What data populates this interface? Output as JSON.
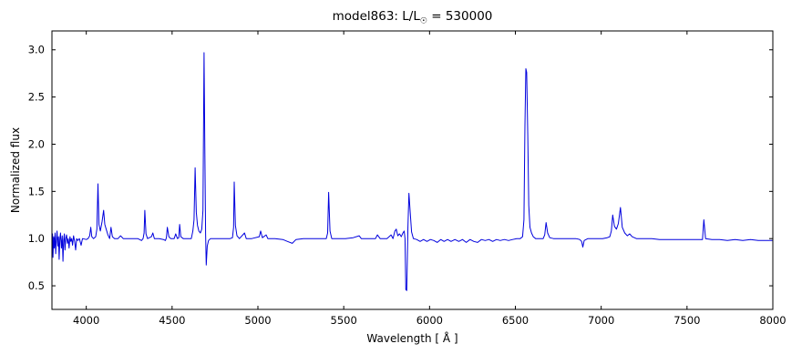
{
  "title": {
    "prefix": "model863: L/L",
    "sun": "☉",
    "suffix": " = 530000"
  },
  "chart_data": {
    "type": "line",
    "title": "model863: L/L☉ = 530000",
    "xlabel": "Wavelength [ Å ]",
    "ylabel": "Normalized flux",
    "xlim": [
      3800,
      8000
    ],
    "ylim": [
      0.25,
      3.2
    ],
    "xticks": [
      4000,
      4500,
      5000,
      5500,
      6000,
      6500,
      7000,
      7500,
      8000
    ],
    "yticks": [
      0.5,
      1.0,
      1.5,
      2.0,
      2.5,
      3.0
    ],
    "grid": false,
    "legend": null,
    "line_color": "#0000dd",
    "axis_color": "#000000",
    "background": "#ffffff",
    "points": [
      [
        3800,
        0.97
      ],
      [
        3803,
        1.05
      ],
      [
        3806,
        0.8
      ],
      [
        3810,
        1.02
      ],
      [
        3814,
        0.9
      ],
      [
        3818,
        1.06
      ],
      [
        3822,
        0.84
      ],
      [
        3826,
        1.0
      ],
      [
        3830,
        1.08
      ],
      [
        3834,
        0.92
      ],
      [
        3838,
        1.02
      ],
      [
        3842,
        0.78
      ],
      [
        3846,
        1.0
      ],
      [
        3850,
        1.06
      ],
      [
        3855,
        0.9
      ],
      [
        3860,
        1.03
      ],
      [
        3864,
        0.76
      ],
      [
        3868,
        0.98
      ],
      [
        3872,
        1.05
      ],
      [
        3876,
        0.88
      ],
      [
        3880,
        1.0
      ],
      [
        3885,
        1.04
      ],
      [
        3890,
        0.95
      ],
      [
        3895,
        1.0
      ],
      [
        3900,
        0.9
      ],
      [
        3905,
        1.02
      ],
      [
        3910,
        0.97
      ],
      [
        3915,
        1.0
      ],
      [
        3920,
        0.93
      ],
      [
        3926,
        1.03
      ],
      [
        3932,
        0.97
      ],
      [
        3938,
        0.88
      ],
      [
        3944,
        1.0
      ],
      [
        3950,
        0.98
      ],
      [
        3960,
        1.0
      ],
      [
        3970,
        0.93
      ],
      [
        3978,
        1.0
      ],
      [
        4000,
        0.99
      ],
      [
        4010,
        1.0
      ],
      [
        4020,
        1.03
      ],
      [
        4026,
        1.12
      ],
      [
        4032,
        1.02
      ],
      [
        4042,
        1.0
      ],
      [
        4055,
        1.02
      ],
      [
        4062,
        1.1
      ],
      [
        4068,
        1.58
      ],
      [
        4074,
        1.15
      ],
      [
        4082,
        1.08
      ],
      [
        4092,
        1.18
      ],
      [
        4101,
        1.3
      ],
      [
        4108,
        1.15
      ],
      [
        4116,
        1.1
      ],
      [
        4126,
        1.04
      ],
      [
        4136,
        1.0
      ],
      [
        4144,
        1.12
      ],
      [
        4152,
        1.02
      ],
      [
        4165,
        1.0
      ],
      [
        4185,
        1.0
      ],
      [
        4200,
        1.03
      ],
      [
        4215,
        1.0
      ],
      [
        4255,
        1.0
      ],
      [
        4300,
        1.0
      ],
      [
        4322,
        0.98
      ],
      [
        4331,
        1.0
      ],
      [
        4337,
        1.06
      ],
      [
        4341,
        1.3
      ],
      [
        4348,
        1.05
      ],
      [
        4357,
        1.0
      ],
      [
        4380,
        1.02
      ],
      [
        4388,
        1.06
      ],
      [
        4397,
        1.0
      ],
      [
        4425,
        1.0
      ],
      [
        4450,
        0.99
      ],
      [
        4461,
        0.98
      ],
      [
        4467,
        1.01
      ],
      [
        4472,
        1.12
      ],
      [
        4481,
        1.02
      ],
      [
        4492,
        1.0
      ],
      [
        4512,
        1.0
      ],
      [
        4521,
        1.05
      ],
      [
        4531,
        1.0
      ],
      [
        4539,
        1.01
      ],
      [
        4544,
        1.15
      ],
      [
        4551,
        1.02
      ],
      [
        4565,
        1.0
      ],
      [
        4590,
        1.0
      ],
      [
        4612,
        1.0
      ],
      [
        4621,
        1.08
      ],
      [
        4628,
        1.2
      ],
      [
        4634,
        1.75
      ],
      [
        4641,
        1.28
      ],
      [
        4648,
        1.14
      ],
      [
        4656,
        1.08
      ],
      [
        4665,
        1.06
      ],
      [
        4673,
        1.1
      ],
      [
        4680,
        1.3
      ],
      [
        4686,
        2.97
      ],
      [
        4691,
        1.9
      ],
      [
        4695,
        1.05
      ],
      [
        4699,
        0.72
      ],
      [
        4705,
        0.92
      ],
      [
        4712,
        0.98
      ],
      [
        4724,
        1.0
      ],
      [
        4760,
        1.0
      ],
      [
        4800,
        1.0
      ],
      [
        4838,
        1.0
      ],
      [
        4852,
        1.01
      ],
      [
        4858,
        1.12
      ],
      [
        4862,
        1.6
      ],
      [
        4869,
        1.14
      ],
      [
        4878,
        1.03
      ],
      [
        4892,
        1.0
      ],
      [
        4922,
        1.06
      ],
      [
        4932,
        1.0
      ],
      [
        4964,
        1.0
      ],
      [
        5008,
        1.02
      ],
      [
        5016,
        1.08
      ],
      [
        5026,
        1.01
      ],
      [
        5048,
        1.04
      ],
      [
        5058,
        1.0
      ],
      [
        5100,
        1.0
      ],
      [
        5145,
        0.99
      ],
      [
        5172,
        0.97
      ],
      [
        5200,
        0.95
      ],
      [
        5222,
        0.99
      ],
      [
        5265,
        1.0
      ],
      [
        5310,
        1.0
      ],
      [
        5360,
        1.0
      ],
      [
        5398,
        1.0
      ],
      [
        5406,
        1.06
      ],
      [
        5412,
        1.49
      ],
      [
        5420,
        1.08
      ],
      [
        5430,
        1.0
      ],
      [
        5465,
        1.0
      ],
      [
        5510,
        1.0
      ],
      [
        5555,
        1.01
      ],
      [
        5590,
        1.03
      ],
      [
        5602,
        1.0
      ],
      [
        5645,
        1.0
      ],
      [
        5685,
        1.0
      ],
      [
        5696,
        1.04
      ],
      [
        5712,
        1.0
      ],
      [
        5752,
        1.0
      ],
      [
        5776,
        1.04
      ],
      [
        5787,
        1.0
      ],
      [
        5798,
        1.08
      ],
      [
        5806,
        1.1
      ],
      [
        5815,
        1.03
      ],
      [
        5825,
        1.05
      ],
      [
        5835,
        1.02
      ],
      [
        5845,
        1.06
      ],
      [
        5852,
        1.08
      ],
      [
        5857,
        1.0
      ],
      [
        5862,
        0.46
      ],
      [
        5867,
        0.45
      ],
      [
        5874,
        1.12
      ],
      [
        5880,
        1.48
      ],
      [
        5887,
        1.28
      ],
      [
        5895,
        1.07
      ],
      [
        5906,
        1.0
      ],
      [
        5925,
        0.99
      ],
      [
        5945,
        0.97
      ],
      [
        5965,
        0.99
      ],
      [
        5985,
        0.97
      ],
      [
        6005,
        0.99
      ],
      [
        6025,
        0.98
      ],
      [
        6045,
        0.96
      ],
      [
        6065,
        0.99
      ],
      [
        6085,
        0.97
      ],
      [
        6105,
        0.99
      ],
      [
        6125,
        0.97
      ],
      [
        6148,
        0.99
      ],
      [
        6170,
        0.97
      ],
      [
        6192,
        0.99
      ],
      [
        6214,
        0.96
      ],
      [
        6236,
        0.99
      ],
      [
        6258,
        0.97
      ],
      [
        6280,
        0.96
      ],
      [
        6302,
        0.99
      ],
      [
        6324,
        0.98
      ],
      [
        6346,
        0.99
      ],
      [
        6368,
        0.97
      ],
      [
        6390,
        0.99
      ],
      [
        6412,
        0.98
      ],
      [
        6436,
        0.99
      ],
      [
        6460,
        0.98
      ],
      [
        6484,
        0.99
      ],
      [
        6508,
        1.0
      ],
      [
        6528,
        1.0
      ],
      [
        6542,
        1.02
      ],
      [
        6550,
        1.2
      ],
      [
        6556,
        2.2
      ],
      [
        6561,
        2.8
      ],
      [
        6566,
        2.76
      ],
      [
        6572,
        2.1
      ],
      [
        6578,
        1.35
      ],
      [
        6585,
        1.12
      ],
      [
        6594,
        1.06
      ],
      [
        6604,
        1.02
      ],
      [
        6618,
        1.0
      ],
      [
        6645,
        1.0
      ],
      [
        6662,
        1.0
      ],
      [
        6671,
        1.04
      ],
      [
        6679,
        1.17
      ],
      [
        6688,
        1.06
      ],
      [
        6700,
        1.01
      ],
      [
        6722,
        1.0
      ],
      [
        6765,
        1.0
      ],
      [
        6810,
        1.0
      ],
      [
        6852,
        1.0
      ],
      [
        6875,
        0.99
      ],
      [
        6886,
        0.97
      ],
      [
        6893,
        0.91
      ],
      [
        6901,
        0.98
      ],
      [
        6922,
        1.0
      ],
      [
        6965,
        1.0
      ],
      [
        7008,
        1.0
      ],
      [
        7035,
        1.01
      ],
      [
        7050,
        1.02
      ],
      [
        7059,
        1.08
      ],
      [
        7067,
        1.25
      ],
      [
        7077,
        1.13
      ],
      [
        7089,
        1.1
      ],
      [
        7100,
        1.16
      ],
      [
        7112,
        1.33
      ],
      [
        7123,
        1.12
      ],
      [
        7137,
        1.06
      ],
      [
        7152,
        1.03
      ],
      [
        7166,
        1.05
      ],
      [
        7180,
        1.02
      ],
      [
        7205,
        1.0
      ],
      [
        7250,
        1.0
      ],
      [
        7295,
        1.0
      ],
      [
        7340,
        0.99
      ],
      [
        7385,
        0.99
      ],
      [
        7430,
        0.99
      ],
      [
        7475,
        0.99
      ],
      [
        7520,
        0.99
      ],
      [
        7562,
        0.99
      ],
      [
        7590,
        0.99
      ],
      [
        7598,
        1.2
      ],
      [
        7608,
        1.0
      ],
      [
        7645,
        0.99
      ],
      [
        7690,
        0.99
      ],
      [
        7735,
        0.98
      ],
      [
        7780,
        0.99
      ],
      [
        7825,
        0.98
      ],
      [
        7870,
        0.99
      ],
      [
        7915,
        0.98
      ],
      [
        7960,
        0.98
      ],
      [
        8000,
        0.98
      ]
    ]
  }
}
